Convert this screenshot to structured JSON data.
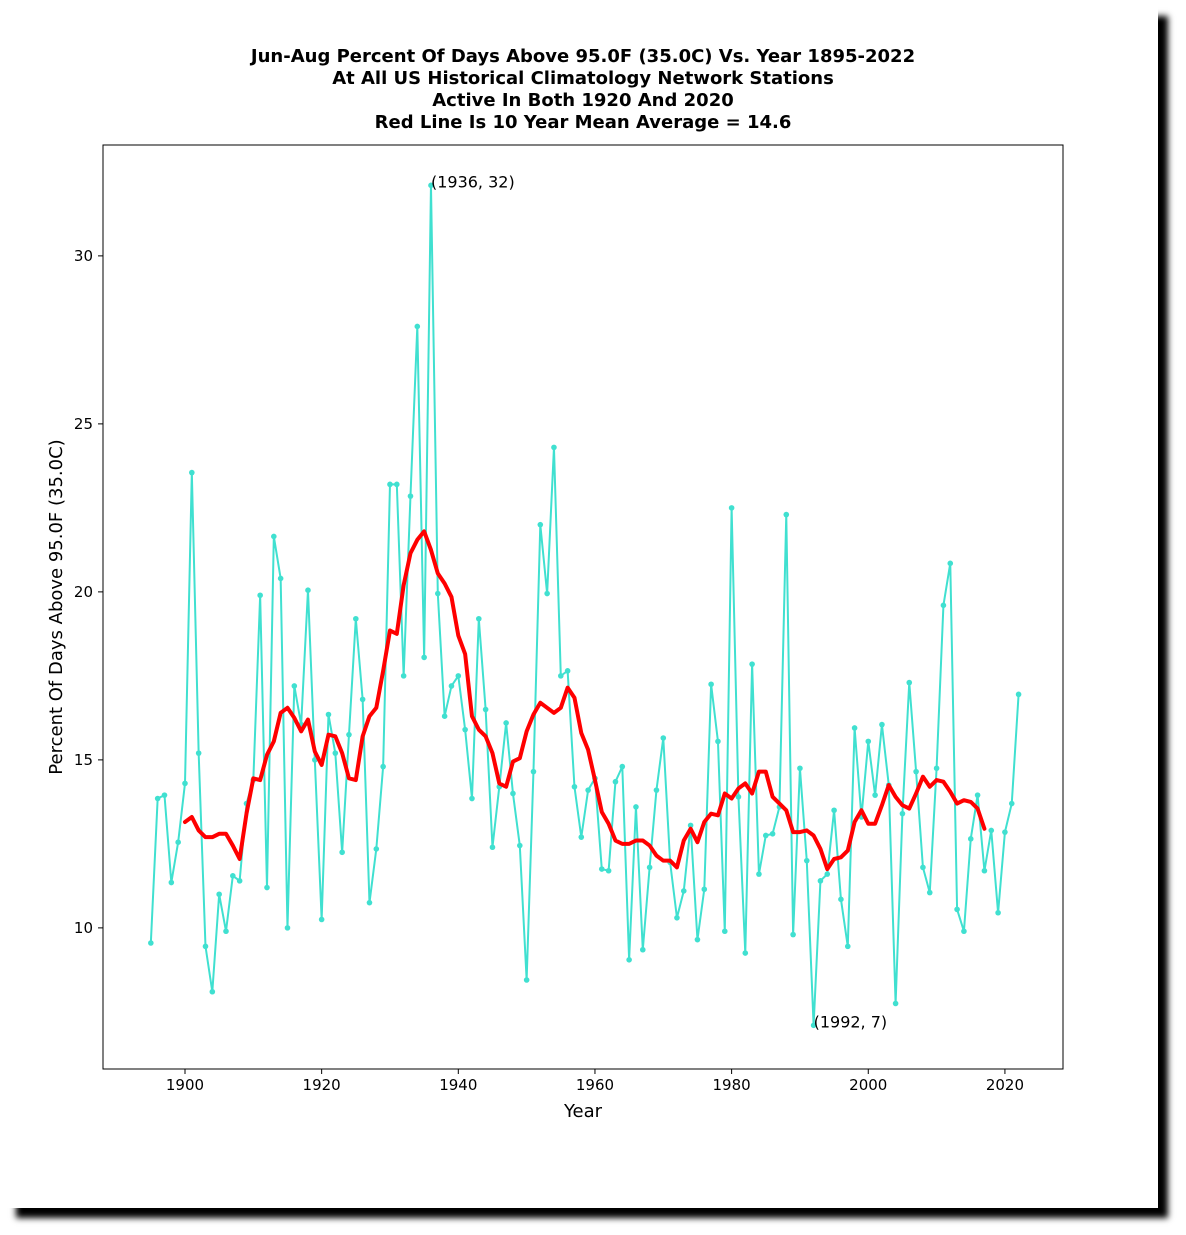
{
  "chart_data": {
    "type": "line",
    "title": [
      "Jun-Aug Percent Of Days Above 95.0F (35.0C) Vs. Year 1895-2022",
      "At All US Historical Climatology Network Stations",
      "Active In Both 1920 And 2020",
      "Red Line Is 10 Year Mean  Average = 14.6"
    ],
    "xlabel": "Year",
    "ylabel": "Percent Of Days Above 95.0F (35.0C)",
    "xlim": [
      1888,
      2028.5
    ],
    "ylim": [
      5.8,
      33.3
    ],
    "xticks": [
      1900,
      1920,
      1940,
      1960,
      1980,
      2000,
      2020
    ],
    "yticks": [
      10,
      15,
      20,
      25,
      30
    ],
    "grid": false,
    "series": [
      {
        "color": "#40e0d0",
        "marker": "dot",
        "x": [
          1895,
          1896,
          1897,
          1898,
          1899,
          1900,
          1901,
          1902,
          1903,
          1904,
          1905,
          1906,
          1907,
          1908,
          1909,
          1910,
          1911,
          1912,
          1913,
          1914,
          1915,
          1916,
          1917,
          1918,
          1919,
          1920,
          1921,
          1922,
          1923,
          1924,
          1925,
          1926,
          1927,
          1928,
          1929,
          1930,
          1931,
          1932,
          1933,
          1934,
          1935,
          1936,
          1937,
          1938,
          1939,
          1940,
          1941,
          1942,
          1943,
          1944,
          1945,
          1946,
          1947,
          1948,
          1949,
          1950,
          1951,
          1952,
          1953,
          1954,
          1955,
          1956,
          1957,
          1958,
          1959,
          1960,
          1961,
          1962,
          1963,
          1964,
          1965,
          1966,
          1967,
          1968,
          1969,
          1970,
          1971,
          1972,
          1973,
          1974,
          1975,
          1976,
          1977,
          1978,
          1979,
          1980,
          1981,
          1982,
          1983,
          1984,
          1985,
          1986,
          1987,
          1988,
          1989,
          1990,
          1991,
          1992,
          1993,
          1994,
          1995,
          1996,
          1997,
          1998,
          1999,
          2000,
          2001,
          2002,
          2003,
          2004,
          2005,
          2006,
          2007,
          2008,
          2009,
          2010,
          2011,
          2012,
          2013,
          2014,
          2015,
          2016,
          2017,
          2018,
          2019,
          2020,
          2021,
          2022
        ],
        "y": [
          9.55,
          13.85,
          13.95,
          11.35,
          12.55,
          14.3,
          23.55,
          15.2,
          9.45,
          8.1,
          11.0,
          9.9,
          11.55,
          11.4,
          13.7,
          14.4,
          19.9,
          11.2,
          21.65,
          20.4,
          10.0,
          17.2,
          16.05,
          20.05,
          15.0,
          10.25,
          16.35,
          15.2,
          12.25,
          15.75,
          19.2,
          16.8,
          10.75,
          12.35,
          14.8,
          23.2,
          23.2,
          17.5,
          22.85,
          27.9,
          18.05,
          32.1,
          19.95,
          16.3,
          17.2,
          17.5,
          15.9,
          13.85,
          19.2,
          16.5,
          12.4,
          14.2,
          16.1,
          14.0,
          12.45,
          8.45,
          14.65,
          22.0,
          19.95,
          24.3,
          17.5,
          17.65,
          14.2,
          12.7,
          14.1,
          14.45,
          11.75,
          11.7,
          14.35,
          14.8,
          9.05,
          13.6,
          9.35,
          11.8,
          14.1,
          15.65,
          11.95,
          10.3,
          11.1,
          13.05,
          9.65,
          11.15,
          17.25,
          15.55,
          9.9,
          22.5,
          13.9,
          9.25,
          17.85,
          11.6,
          12.75,
          12.8,
          13.6,
          22.3,
          9.8,
          14.75,
          12.0,
          7.1,
          11.4,
          11.6,
          13.5,
          10.85,
          9.45,
          15.95,
          13.3,
          15.55,
          13.95,
          16.05,
          14.25,
          7.75,
          13.4,
          17.3,
          14.65,
          11.8,
          11.05,
          14.75,
          19.6,
          20.85,
          10.55,
          9.9,
          12.65,
          13.95,
          11.7,
          12.9,
          10.45,
          12.85,
          13.7,
          16.95
        ]
      },
      {
        "color": "#ff0000",
        "x": [
          1900,
          1901,
          1902,
          1903,
          1904,
          1905,
          1906,
          1907,
          1908,
          1909,
          1910,
          1911,
          1912,
          1913,
          1914,
          1915,
          1916,
          1917,
          1918,
          1919,
          1920,
          1921,
          1922,
          1923,
          1924,
          1925,
          1926,
          1927,
          1928,
          1929,
          1930,
          1931,
          1932,
          1933,
          1934,
          1935,
          1936,
          1937,
          1938,
          1939,
          1940,
          1941,
          1942,
          1943,
          1944,
          1945,
          1946,
          1947,
          1948,
          1949,
          1950,
          1951,
          1952,
          1953,
          1954,
          1955,
          1956,
          1957,
          1958,
          1959,
          1960,
          1961,
          1962,
          1963,
          1964,
          1965,
          1966,
          1967,
          1968,
          1969,
          1970,
          1971,
          1972,
          1973,
          1974,
          1975,
          1976,
          1977,
          1978,
          1979,
          1980,
          1981,
          1982,
          1983,
          1984,
          1985,
          1986,
          1987,
          1988,
          1989,
          1990,
          1991,
          1992,
          1993,
          1994,
          1995,
          1996,
          1997,
          1998,
          1999,
          2000,
          2001,
          2002,
          2003,
          2004,
          2005,
          2006,
          2007,
          2008,
          2009,
          2010,
          2011,
          2012,
          2013,
          2014,
          2015,
          2016,
          2017
        ],
        "y": [
          13.15,
          13.3,
          12.9,
          12.7,
          12.7,
          12.8,
          12.8,
          12.45,
          12.05,
          13.4,
          14.45,
          14.4,
          15.15,
          15.55,
          16.4,
          16.55,
          16.25,
          15.85,
          16.2,
          15.25,
          14.85,
          15.75,
          15.7,
          15.2,
          14.45,
          14.4,
          15.7,
          16.3,
          16.55,
          17.65,
          18.85,
          18.75,
          20.2,
          21.15,
          21.55,
          21.8,
          21.25,
          20.55,
          20.25,
          19.85,
          18.7,
          18.15,
          16.3,
          15.9,
          15.7,
          15.2,
          14.3,
          14.2,
          14.95,
          15.05,
          15.85,
          16.35,
          16.7,
          16.55,
          16.4,
          16.55,
          17.15,
          16.85,
          15.8,
          15.3,
          14.4,
          13.45,
          13.1,
          12.6,
          12.5,
          12.5,
          12.6,
          12.6,
          12.45,
          12.15,
          12.0,
          12.0,
          11.8,
          12.6,
          12.95,
          12.55,
          13.15,
          13.4,
          13.35,
          14.0,
          13.85,
          14.15,
          14.3,
          14.0,
          14.65,
          14.65,
          13.9,
          13.7,
          13.5,
          12.85,
          12.85,
          12.9,
          12.75,
          12.35,
          11.75,
          12.05,
          12.1,
          12.3,
          13.15,
          13.5,
          13.1,
          13.1,
          13.65,
          14.25,
          13.9,
          13.65,
          13.55,
          14.0,
          14.5,
          14.2,
          14.4,
          14.35,
          14.05,
          13.7,
          13.8,
          13.75,
          13.55,
          12.95
        ]
      }
    ],
    "annotations": [
      {
        "x": 1936,
        "y": 32.1,
        "text": "(1936, 32)"
      },
      {
        "x": 1992,
        "y": 7.1,
        "text": "(1992, 7)"
      }
    ]
  }
}
